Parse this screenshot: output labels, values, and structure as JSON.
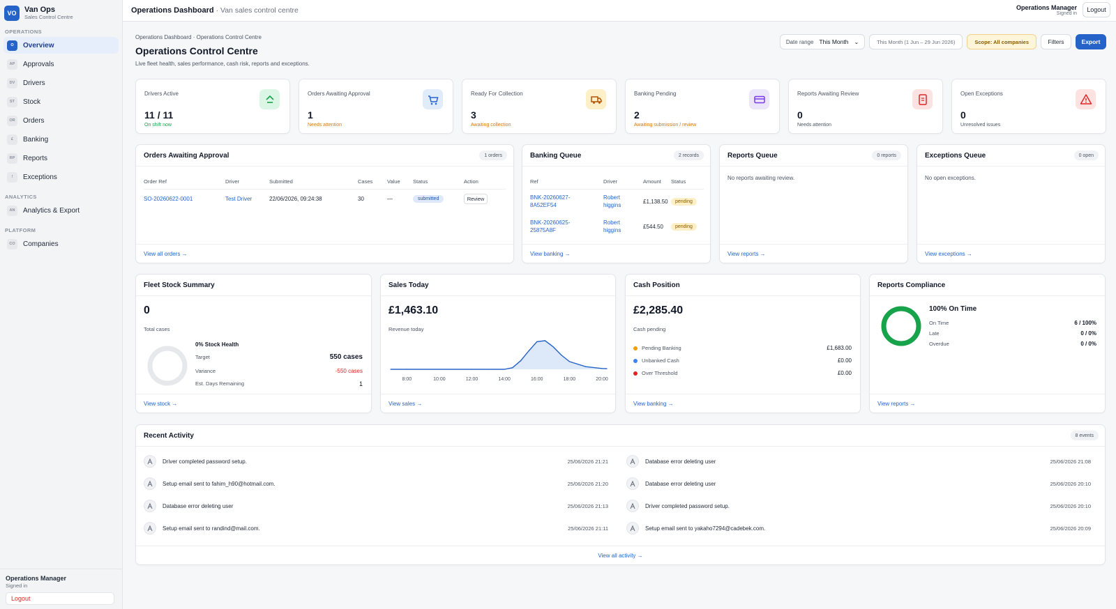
{
  "brand": {
    "initials": "VO",
    "title": "Van Ops",
    "subtitle": "Sales Control Centre"
  },
  "sidebar": {
    "sections": [
      {
        "label": "OPERATIONS",
        "items": [
          {
            "code": "O",
            "label": "Overview",
            "active": true
          },
          {
            "code": "AP",
            "label": "Approvals"
          },
          {
            "code": "DV",
            "label": "Drivers"
          },
          {
            "code": "ST",
            "label": "Stock"
          },
          {
            "code": "OR",
            "label": "Orders"
          },
          {
            "code": "£",
            "label": "Banking"
          },
          {
            "code": "RP",
            "label": "Reports"
          },
          {
            "code": "!",
            "label": "Exceptions"
          }
        ]
      },
      {
        "label": "ANALYTICS",
        "items": [
          {
            "code": "AN",
            "label": "Analytics & Export"
          }
        ]
      },
      {
        "label": "PLATFORM",
        "items": [
          {
            "code": "CO",
            "label": "Companies"
          }
        ]
      }
    ],
    "footer": {
      "user": "Operations Manager",
      "state": "Signed in",
      "logout": "Logout"
    }
  },
  "topbar": {
    "title": "Operations Dashboard",
    "subtitle": "· Van sales control centre",
    "user": "Operations Manager",
    "user_state": "Signed in",
    "logout": "Logout"
  },
  "header": {
    "breadcrumb": "Operations Dashboard  ·  Operations Control Centre",
    "title": "Operations Control Centre",
    "subtitle": "Live fleet health, sales performance, cash risk, reports and exceptions.",
    "date_range_label": "Date range",
    "date_range_value": "This Month",
    "date_chip": "This Month (1 Jun – 29 Jun 2026)",
    "scope": "Scope: All companies",
    "filters": "Filters",
    "export": "Export"
  },
  "kpis": [
    {
      "label": "Drivers Active",
      "value": "11 / 11",
      "note": "On shift now",
      "note_color": "#16a34a",
      "icon": "driver-icon",
      "bg": "#dcf6e6",
      "fg": "#16a34a"
    },
    {
      "label": "Orders Awaiting Approval",
      "value": "1",
      "note": "Needs attention",
      "note_color": "#d97706",
      "icon": "cart-icon",
      "bg": "#e1ecfb",
      "fg": "#2563c9"
    },
    {
      "label": "Ready For Collection",
      "value": "3",
      "note": "Awaiting collection",
      "note_color": "#d97706",
      "icon": "truck-icon",
      "bg": "#fdf0c8",
      "fg": "#b45309"
    },
    {
      "label": "Banking Pending",
      "value": "2",
      "note": "Awaiting submission / review",
      "note_color": "#d97706",
      "icon": "card-icon",
      "bg": "#ece6fb",
      "fg": "#7c3aed"
    },
    {
      "label": "Reports Awaiting Review",
      "value": "0",
      "note": "Needs attention",
      "note_color": "#4b5563",
      "icon": "report-icon",
      "bg": "#fde2e2",
      "fg": "#dc2626"
    },
    {
      "label": "Open Exceptions",
      "value": "0",
      "note": "Unresolved issues",
      "note_color": "#4b5563",
      "icon": "warning-icon",
      "bg": "#fde2e2",
      "fg": "#dc2626"
    }
  ],
  "orders_panel": {
    "title": "Orders Awaiting Approval",
    "badge": "1 orders",
    "columns": [
      "Order Ref",
      "Driver",
      "Submitted",
      "Cases",
      "Value",
      "Status",
      "Action"
    ],
    "rows": [
      {
        "ref": "SO-20260622-0001",
        "driver": "Test Driver",
        "submitted": "22/06/2026, 09:24:38",
        "cases": "30",
        "value": "—",
        "status": "submitted",
        "action": "Review"
      }
    ],
    "footer": "View all orders →"
  },
  "banking_panel": {
    "title": "Banking Queue",
    "badge": "2 records",
    "columns": [
      "Ref",
      "Driver",
      "Amount",
      "Status"
    ],
    "rows": [
      {
        "ref1": "BNK-20260627-",
        "ref2": "8A52EF54",
        "driver1": "Robert",
        "driver2": "higgins",
        "amount": "£1,138.50",
        "status": "pending"
      },
      {
        "ref1": "BNK-20260625-",
        "ref2": "25875A8F",
        "driver1": "Robert",
        "driver2": "higgins",
        "amount": "£544.50",
        "status": "pending"
      }
    ],
    "footer": "View banking →"
  },
  "reports_panel": {
    "title": "Reports Queue",
    "badge": "0 reports",
    "empty": "No reports awaiting review.",
    "footer": "View reports →"
  },
  "exceptions_panel": {
    "title": "Exceptions Queue",
    "badge": "0 open",
    "empty": "No open exceptions.",
    "footer": "View exceptions →"
  },
  "fleet_stock": {
    "title": "Fleet Stock Summary",
    "value": "0",
    "value_label": "Total cases",
    "health": "0% Stock Health",
    "target_label": "Target",
    "target": "550 cases",
    "variance_label": "Variance",
    "variance": "-550 cases",
    "days_label": "Est. Days Remaining",
    "days": "1",
    "health_fraction": 0,
    "footer": "View stock →"
  },
  "sales_today": {
    "title": "Sales Today",
    "value": "£1,463.10",
    "value_label": "Revenue today",
    "footer": "View sales →"
  },
  "chart_data": {
    "type": "area",
    "title": "",
    "xlabel": "",
    "ylabel": "",
    "x_ticks": [
      "8:00",
      "10:00",
      "12:00",
      "14:00",
      "16:00",
      "18:00",
      "20:00"
    ],
    "x": [
      7,
      8,
      9,
      10,
      11,
      12,
      13,
      14,
      14.5,
      15,
      15.5,
      16,
      16.5,
      17,
      17.5,
      18,
      19,
      20,
      20.3
    ],
    "values": [
      0,
      0,
      0,
      0,
      0,
      0,
      0,
      0,
      80,
      420,
      900,
      1350,
      1400,
      1100,
      700,
      380,
      130,
      40,
      30
    ],
    "grid": false
  },
  "cash_position": {
    "title": "Cash Position",
    "value": "£2,285.40",
    "value_label": "Cash pending",
    "rows": [
      {
        "label": "Pending Banking",
        "value": "£1,683.00",
        "color": "#f59e0b"
      },
      {
        "label": "Unbanked Cash",
        "value": "£0.00",
        "color": "#3b82f6"
      },
      {
        "label": "Over Threshold",
        "value": "£0.00",
        "color": "#dc2626"
      }
    ],
    "footer": "View banking →"
  },
  "reports_compliance": {
    "title": "Reports Compliance",
    "headline": "100% On Time",
    "on_time_fraction": 1,
    "rows": [
      {
        "label": "On Time",
        "value": "6 / 100%"
      },
      {
        "label": "Late",
        "value": "0 / 0%"
      },
      {
        "label": "Overdue",
        "value": "0 / 0%"
      }
    ],
    "footer": "View reports →"
  },
  "activity": {
    "title": "Recent Activity",
    "badge": "8 events",
    "left": [
      {
        "text": "Driver completed password setup.",
        "time": "25/06/2026 21:21"
      },
      {
        "text": "Setup email sent to fahim_h90@hotmail.com.",
        "time": "25/06/2026 21:20"
      },
      {
        "text": "Database error deleting user",
        "time": "25/06/2026 21:13"
      },
      {
        "text": "Setup email sent to randind@mail.com.",
        "time": "25/06/2026 21:11"
      }
    ],
    "right": [
      {
        "text": "Database error deleting user",
        "time": "25/06/2026 21:08"
      },
      {
        "text": "Database error deleting user",
        "time": "25/06/2026 20:10"
      },
      {
        "text": "Driver completed password setup.",
        "time": "25/06/2026 20:10"
      },
      {
        "text": "Setup email sent to yakaho7294@cadebek.com.",
        "time": "25/06/2026 20:09"
      }
    ],
    "footer": "View all activity →"
  }
}
